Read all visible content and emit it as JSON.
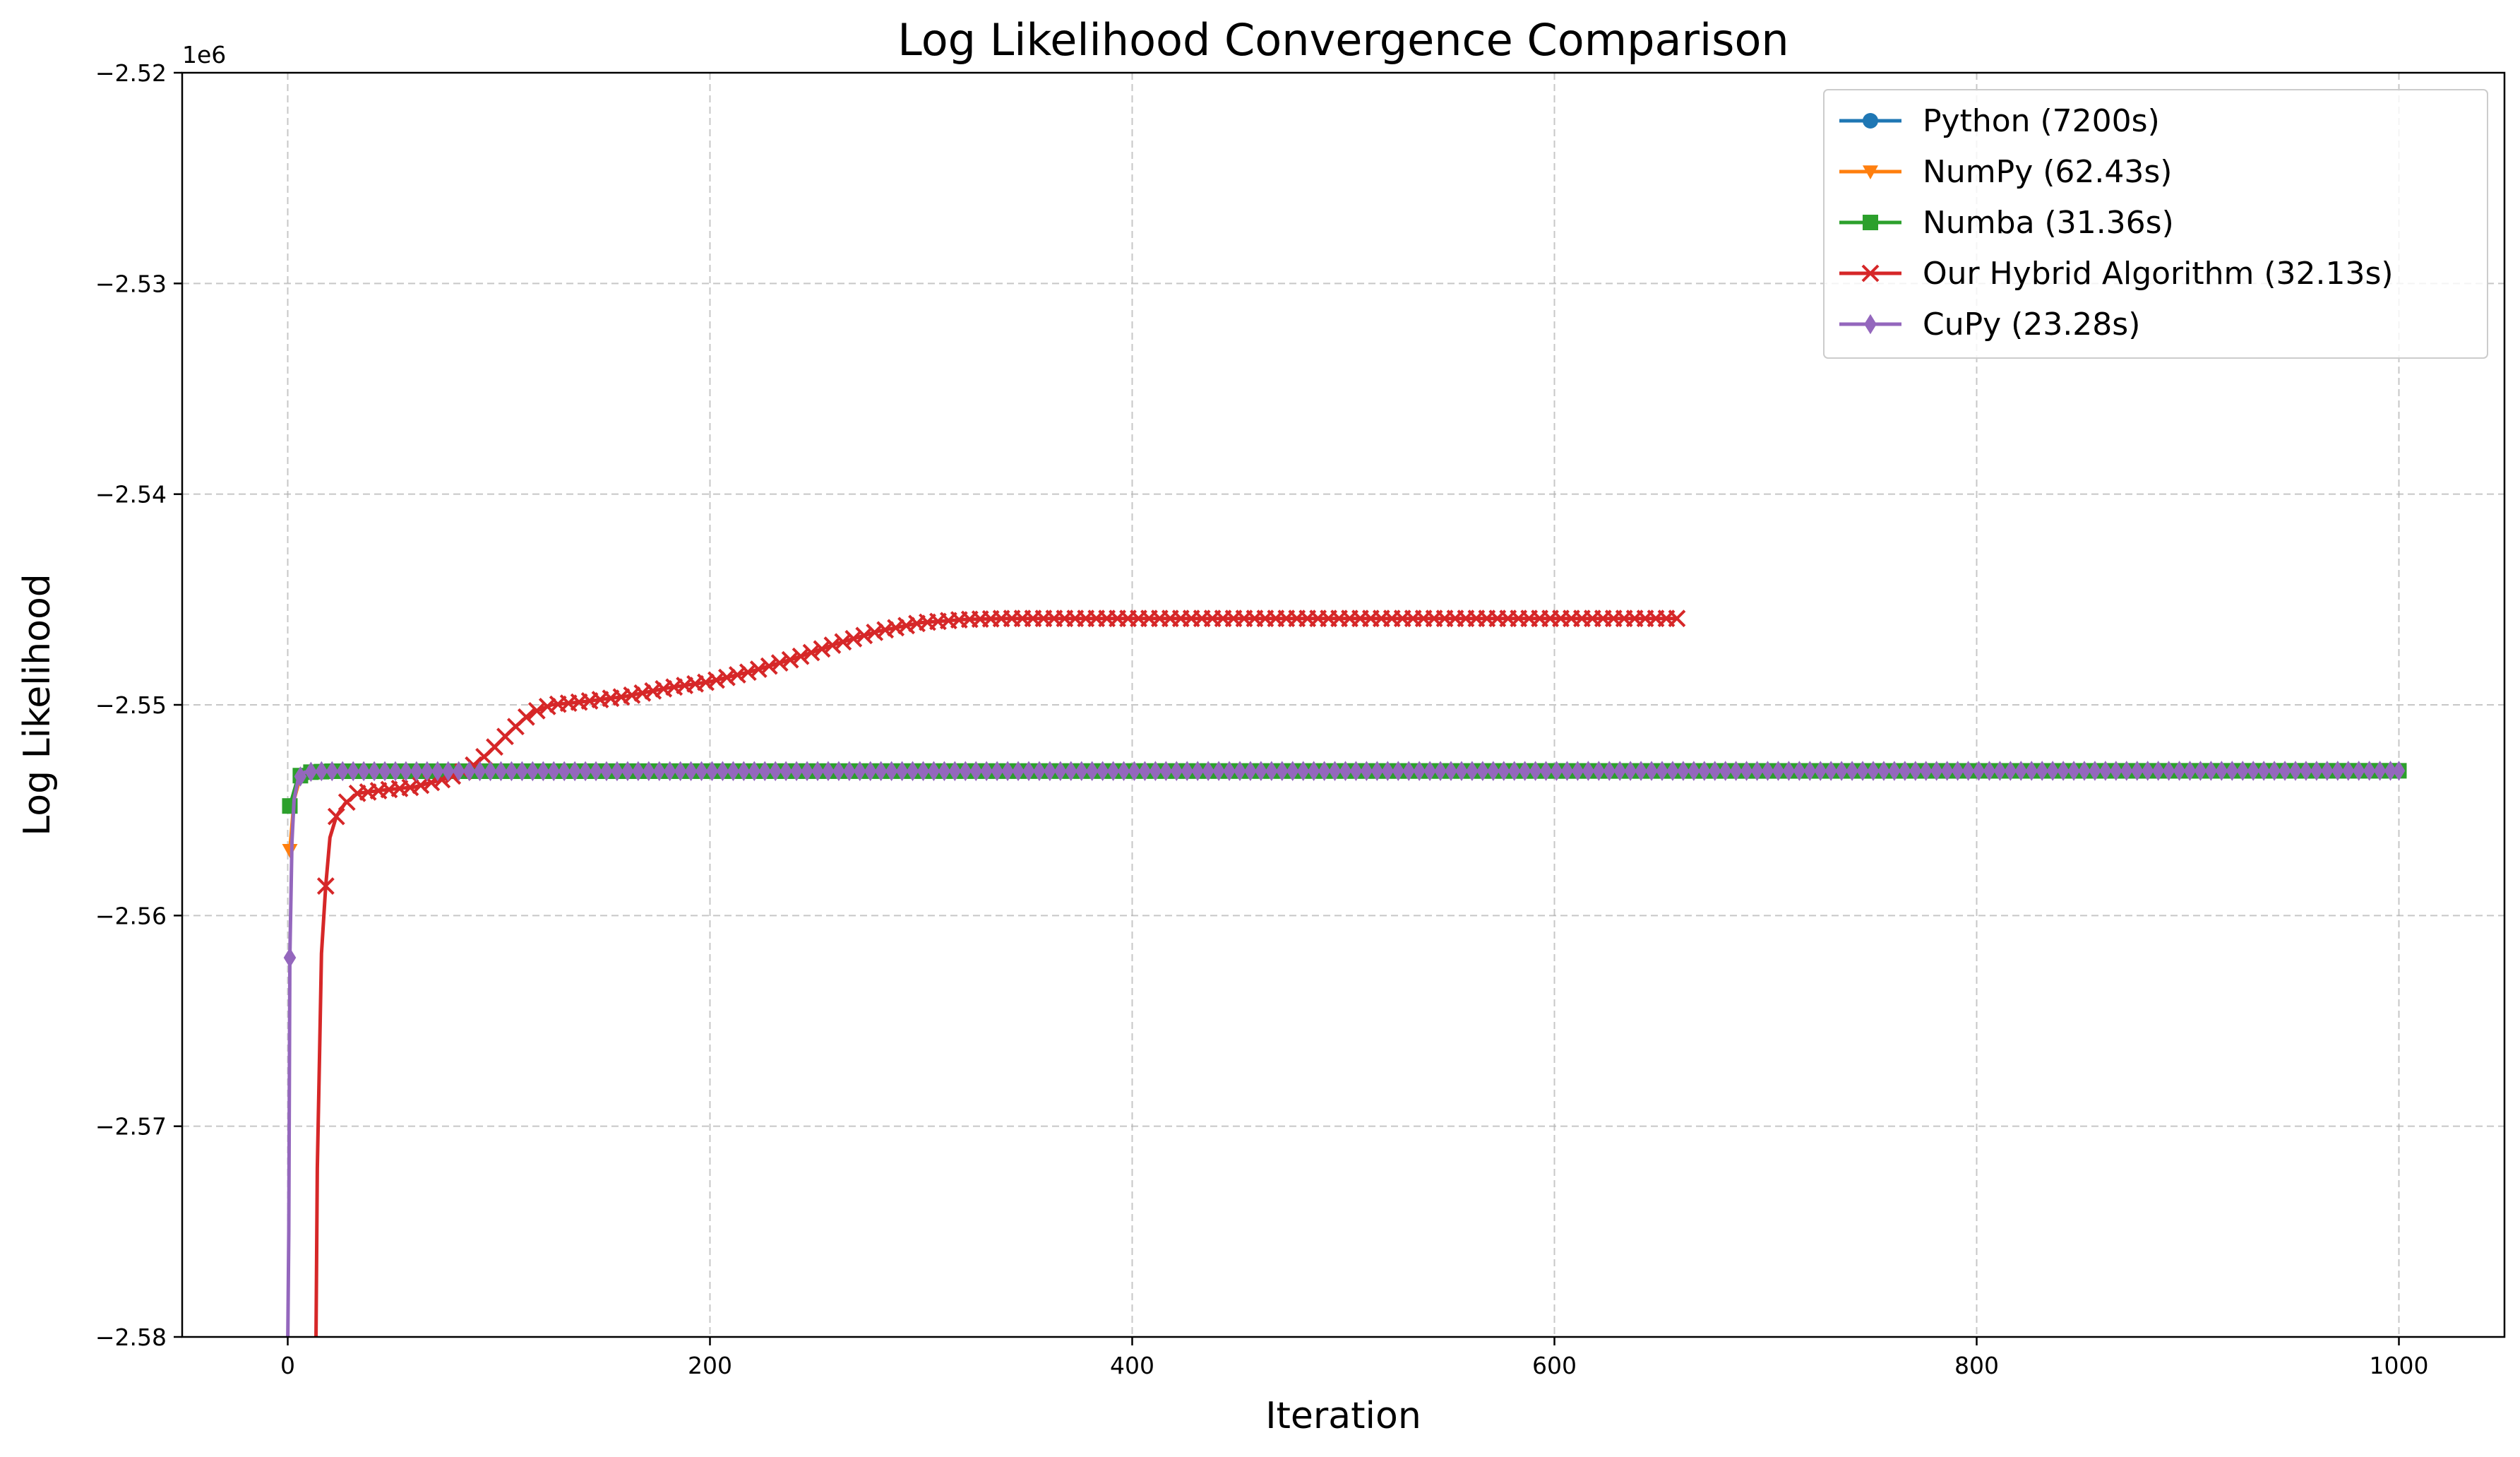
{
  "chart_data": {
    "type": "line",
    "title": "Log Likelihood Convergence Comparison",
    "xlabel": "Iteration",
    "ylabel": "Log Likelihood",
    "y_offset_label": "1e6",
    "xlim": [
      -50,
      1050
    ],
    "ylim": [
      -2.58,
      -2.52
    ],
    "x_ticks": [
      0,
      200,
      400,
      600,
      800,
      1000
    ],
    "x_tick_labels": [
      "0",
      "200",
      "400",
      "600",
      "800",
      "1000"
    ],
    "y_ticks": [
      -2.58,
      -2.57,
      -2.56,
      -2.55,
      -2.54,
      -2.53,
      -2.52
    ],
    "y_tick_labels": [
      "−2.58",
      "−2.57",
      "−2.56",
      "−2.55",
      "−2.54",
      "−2.53",
      "−2.52"
    ],
    "grid": true,
    "legend_position": "top-right",
    "series": [
      {
        "name": "Python (7200s)",
        "color": "#1f77b4",
        "marker": "circle",
        "line_width": 5,
        "x_max": 1000,
        "marker_every": 5,
        "points": [
          [
            1,
            -2.5548
          ],
          [
            5,
            -2.5534
          ],
          [
            10,
            -2.5532
          ],
          [
            20,
            -2.55315
          ],
          [
            1000,
            -2.55313
          ]
        ]
      },
      {
        "name": "NumPy (62.43s)",
        "color": "#ff7f0e",
        "marker": "triangle-down",
        "line_width": 5,
        "x_max": 1000,
        "marker_every": 5,
        "points": [
          [
            1,
            -2.5569
          ],
          [
            3,
            -2.5545
          ],
          [
            6,
            -2.5534
          ],
          [
            10,
            -2.5532
          ],
          [
            20,
            -2.55315
          ],
          [
            1000,
            -2.55313
          ]
        ]
      },
      {
        "name": "Numba (31.36s)",
        "color": "#2ca02c",
        "marker": "square",
        "line_width": 5,
        "x_max": 1000,
        "marker_every": 5,
        "points": [
          [
            1,
            -2.5548
          ],
          [
            5,
            -2.5534
          ],
          [
            10,
            -2.5532
          ],
          [
            20,
            -2.55315
          ],
          [
            1000,
            -2.55313
          ]
        ]
      },
      {
        "name": "Our Hybrid Algorithm (32.13s)",
        "color": "#d62728",
        "marker": "x",
        "line_width": 5,
        "x_max": 659,
        "marker_every": 5,
        "points": [
          [
            13,
            -2.585
          ],
          [
            14,
            -2.572
          ],
          [
            16,
            -2.5618
          ],
          [
            18,
            -2.5586
          ],
          [
            20,
            -2.5563
          ],
          [
            23,
            -2.5553
          ],
          [
            27,
            -2.5547
          ],
          [
            33,
            -2.5542
          ],
          [
            45,
            -2.55405
          ],
          [
            60,
            -2.5539
          ],
          [
            75,
            -2.5535
          ],
          [
            85,
            -2.5531
          ],
          [
            95,
            -2.5523
          ],
          [
            105,
            -2.5513
          ],
          [
            115,
            -2.5504
          ],
          [
            125,
            -2.55
          ],
          [
            140,
            -2.54985
          ],
          [
            160,
            -2.5496
          ],
          [
            180,
            -2.5492
          ],
          [
            200,
            -2.5489
          ],
          [
            220,
            -2.5484
          ],
          [
            240,
            -2.5478
          ],
          [
            260,
            -2.5471
          ],
          [
            280,
            -2.5465
          ],
          [
            300,
            -2.5461
          ],
          [
            320,
            -2.54595
          ],
          [
            340,
            -2.5459
          ],
          [
            659,
            -2.5459
          ]
        ]
      },
      {
        "name": "CuPy (23.28s)",
        "color": "#9467bd",
        "marker": "diamond",
        "line_width": 5,
        "x_max": 1000,
        "marker_every": 5,
        "points": [
          [
            0,
            -2.5805
          ],
          [
            0.5,
            -2.575
          ],
          [
            1,
            -2.562
          ],
          [
            2,
            -2.5565
          ],
          [
            3,
            -2.5545
          ],
          [
            5,
            -2.5535
          ],
          [
            8,
            -2.5532
          ],
          [
            15,
            -2.55315
          ],
          [
            1000,
            -2.55313
          ]
        ]
      }
    ]
  }
}
